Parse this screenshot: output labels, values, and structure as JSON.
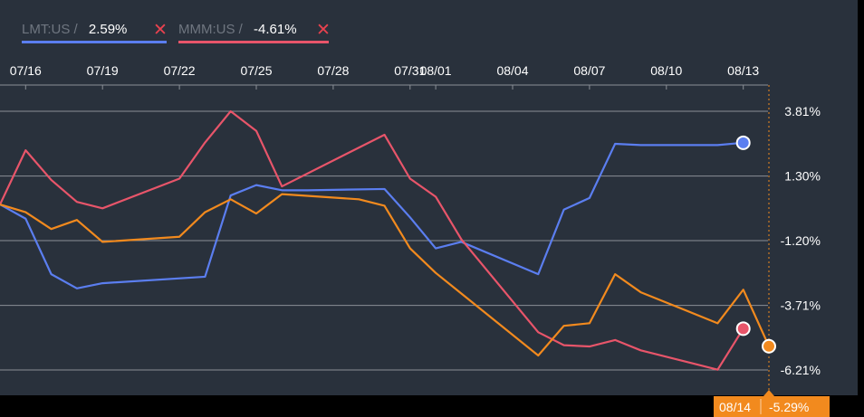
{
  "legend": [
    {
      "symbol": "LMT:US",
      "separator": "/",
      "value": "2.59%",
      "color": "#5b7ef0",
      "close_icon": "close-icon"
    },
    {
      "symbol": "MMM:US",
      "separator": "/",
      "value": "-4.61%",
      "color": "#e8556a",
      "close_icon": "close-icon"
    }
  ],
  "crosshair": {
    "date": "08/14",
    "value": "-5.29%",
    "color": "#f28a1e"
  },
  "colors": {
    "background": "#29313c",
    "grid": "#8a8f96",
    "axis_text": "#ffffff",
    "orange": "#f28a1e"
  },
  "chart_data": {
    "type": "line",
    "x_ticks": [
      "07/16",
      "07/19",
      "07/22",
      "07/25",
      "07/28",
      "07/31",
      "08/01",
      "08/04",
      "08/07",
      "08/10",
      "08/13"
    ],
    "y_ticks": [
      "3.81%",
      "1.30%",
      "-1.20%",
      "-3.71%",
      "-6.21%"
    ],
    "y_tick_values": [
      3.81,
      1.3,
      -1.2,
      -3.71,
      -6.21
    ],
    "ylim": [
      -6.21,
      3.81
    ],
    "x_range_days": [
      0,
      29.7
    ],
    "series": [
      {
        "name": "LMT:US",
        "color": "#5b7ef0",
        "x": [
          0,
          1,
          2,
          3,
          4,
          8,
          9,
          10,
          11,
          12,
          15,
          16,
          17,
          18,
          21,
          22,
          23,
          24,
          25,
          28,
          29
        ],
        "y": [
          0.2,
          -0.35,
          -2.5,
          -3.05,
          -2.85,
          -2.6,
          0.55,
          0.95,
          0.75,
          0.75,
          0.8,
          -0.3,
          -1.5,
          -1.25,
          -2.5,
          0.0,
          0.45,
          2.55,
          2.5,
          2.5,
          2.59
        ],
        "end_marker": true
      },
      {
        "name": "MMM:US",
        "color": "#e8556a",
        "x": [
          0,
          1,
          2,
          3,
          4,
          7,
          8,
          9,
          10,
          11,
          15,
          16,
          17,
          18,
          21,
          22,
          23,
          24,
          25,
          28,
          29
        ],
        "y": [
          0.2,
          2.3,
          1.15,
          0.3,
          0.05,
          1.2,
          2.6,
          3.81,
          3.05,
          0.9,
          2.9,
          1.2,
          0.5,
          -1.15,
          -4.75,
          -5.25,
          -5.3,
          -5.05,
          -5.45,
          -6.2,
          -4.61
        ],
        "end_marker": true
      },
      {
        "color": "#f28a1e",
        "x": [
          0,
          1,
          2,
          3,
          4,
          7,
          8,
          9,
          10,
          11,
          14,
          15,
          16,
          17,
          18,
          21,
          22,
          23,
          24,
          25,
          28,
          29,
          30
        ],
        "y": [
          0.2,
          -0.1,
          -0.75,
          -0.4,
          -1.25,
          -1.05,
          -0.1,
          0.4,
          -0.15,
          0.6,
          0.4,
          0.15,
          -1.5,
          -2.45,
          -3.25,
          -5.65,
          -4.5,
          -4.4,
          -2.5,
          -3.2,
          -4.4,
          -3.1,
          -5.29
        ],
        "end_marker": true
      }
    ],
    "grid": true,
    "legend_position": "top-left"
  }
}
